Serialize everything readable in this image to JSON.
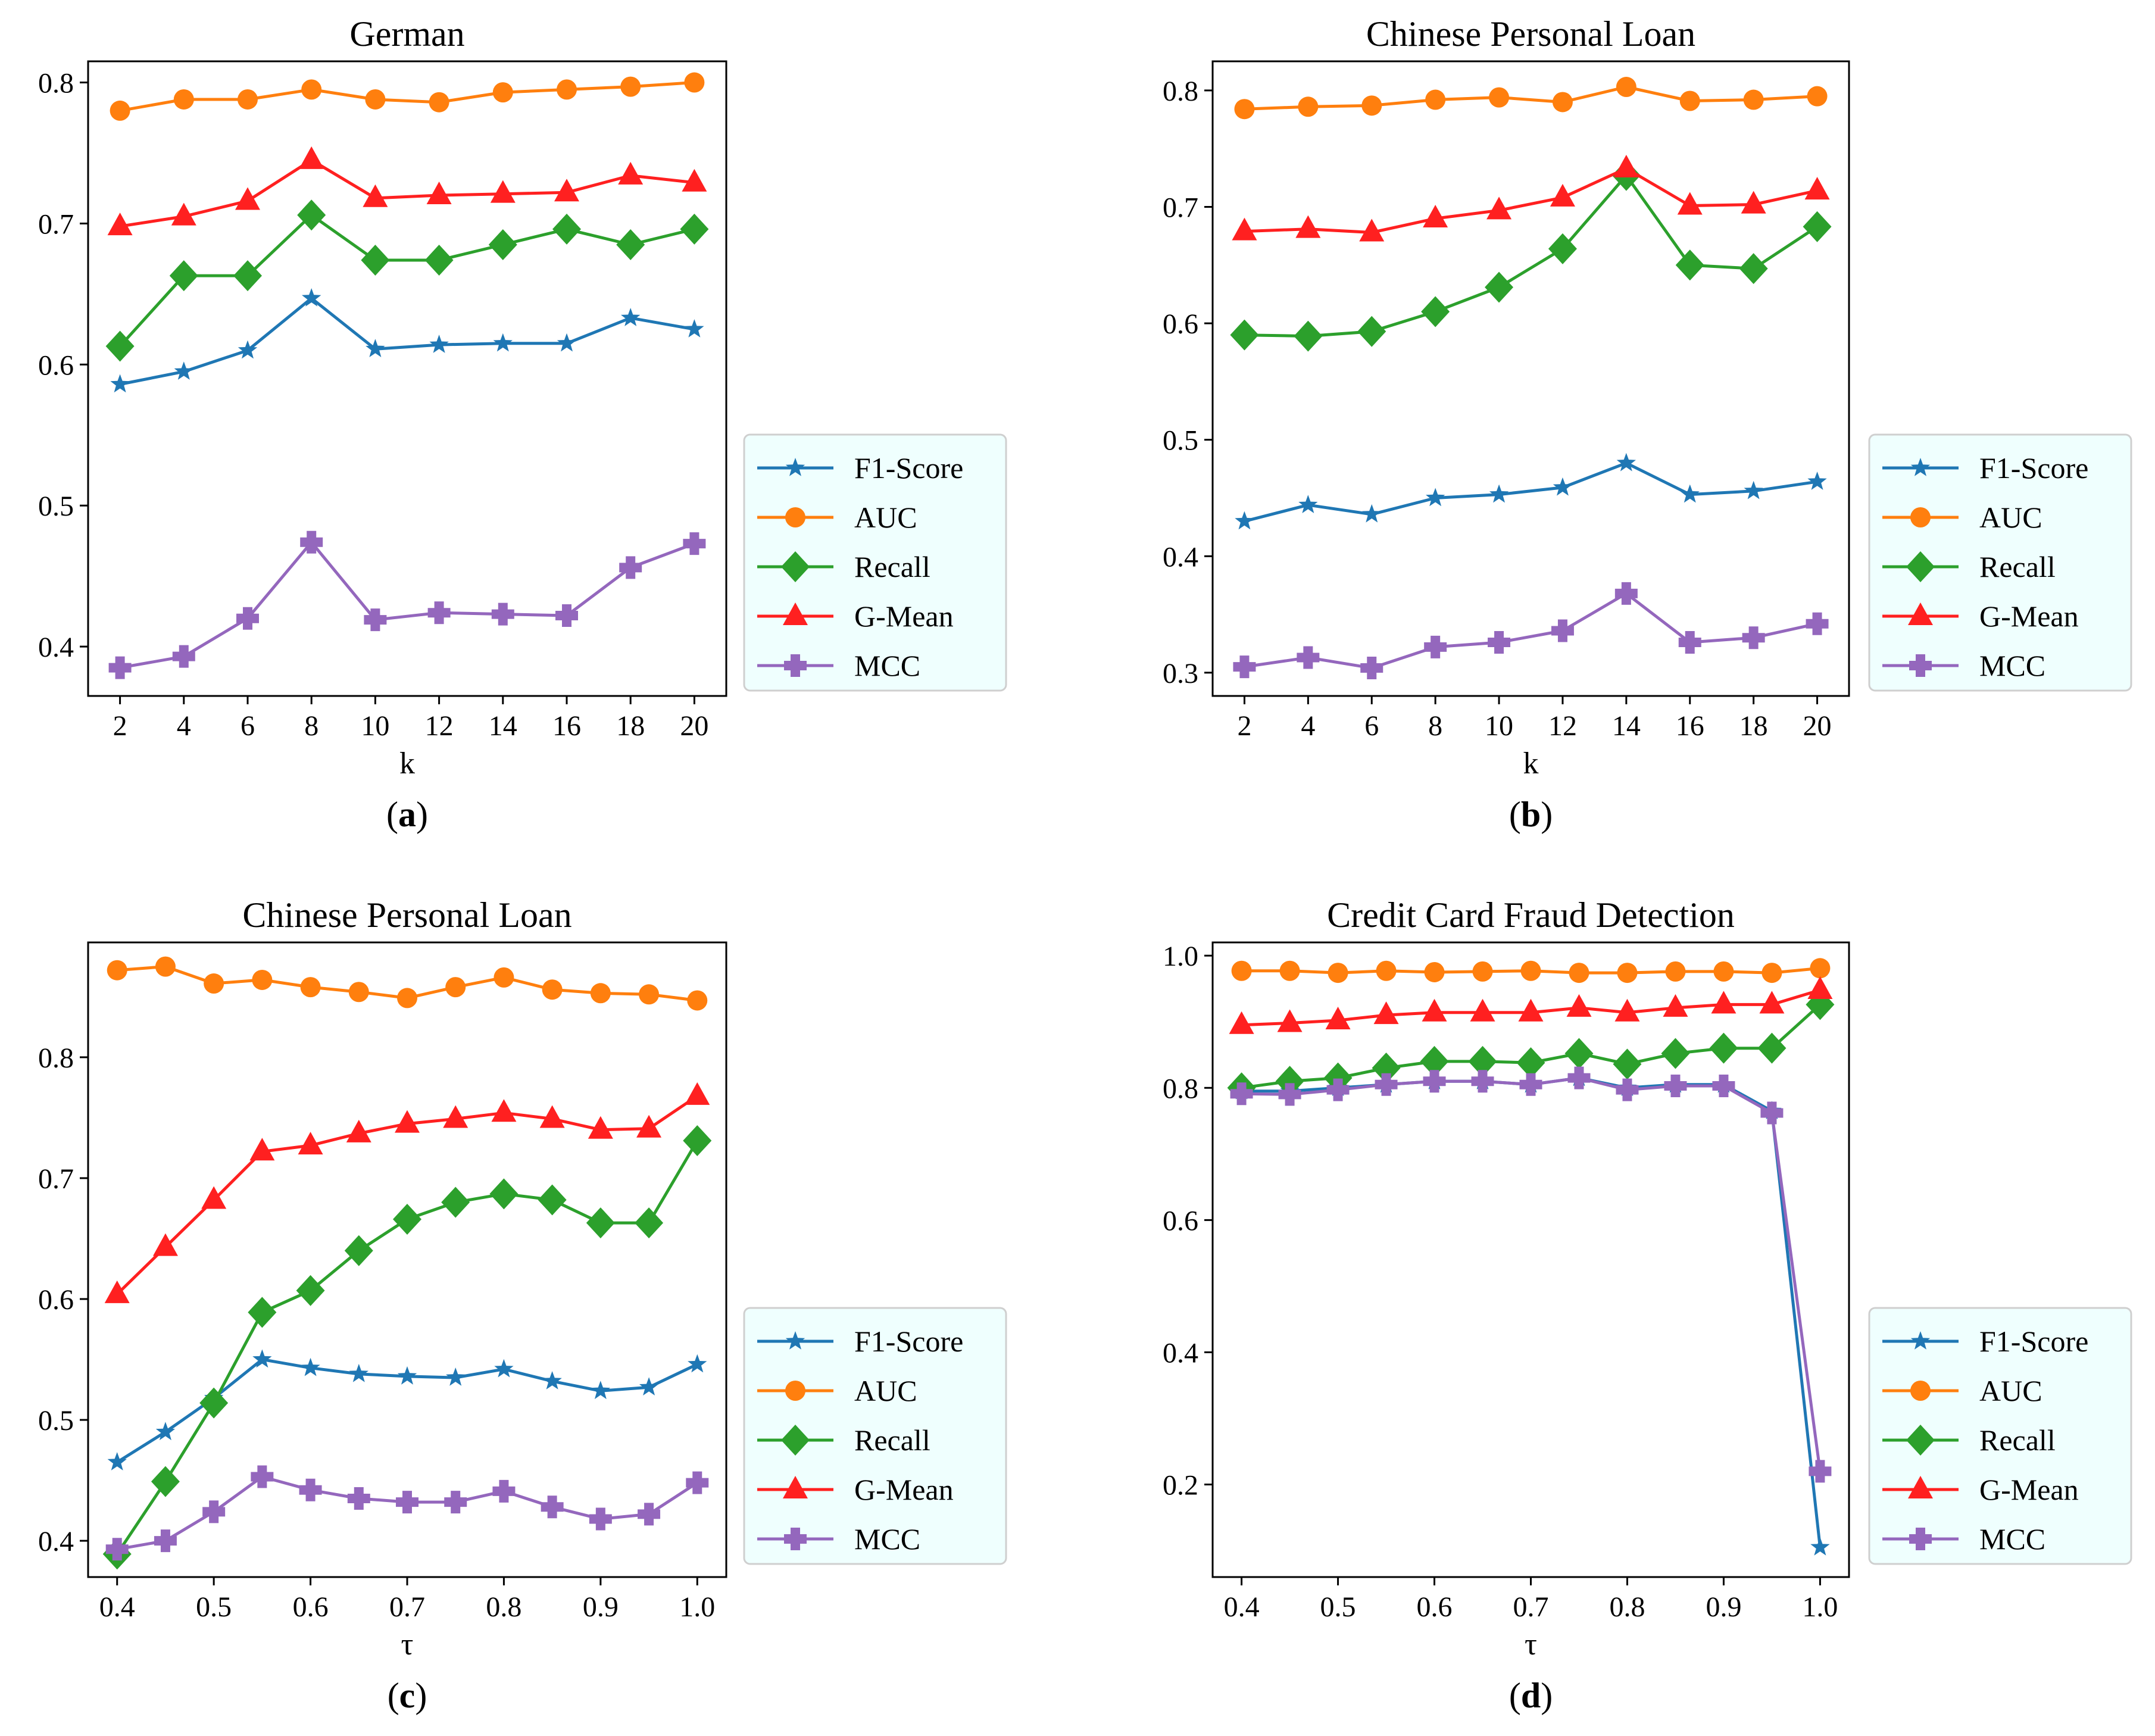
{
  "figure": {
    "panel_labels": [
      "a",
      "b",
      "c",
      "d"
    ]
  },
  "chart_data": [
    {
      "type": "line",
      "panel": "a",
      "title": "German",
      "xlabel": "k",
      "ylabel": "",
      "x": [
        2,
        4,
        6,
        8,
        10,
        12,
        14,
        16,
        18,
        20
      ],
      "xticks": [
        "2",
        "4",
        "6",
        "8",
        "10",
        "12",
        "14",
        "16",
        "18",
        "20"
      ],
      "xlim": [
        1,
        21
      ],
      "ylim": [
        0.365,
        0.815
      ],
      "yticks": [
        "0.4",
        "0.5",
        "0.6",
        "0.7",
        "0.8"
      ],
      "ytick_values": [
        0.4,
        0.5,
        0.6,
        0.7,
        0.8
      ],
      "legend": "outside-right-bottom",
      "series": [
        {
          "name": "F1-Score",
          "color": "#1f77b4",
          "marker": "star",
          "values": [
            0.586,
            0.595,
            0.61,
            0.647,
            0.611,
            0.614,
            0.615,
            0.615,
            0.633,
            0.625
          ]
        },
        {
          "name": "AUC",
          "color": "#ff7f0e",
          "marker": "circle",
          "values": [
            0.78,
            0.788,
            0.788,
            0.795,
            0.788,
            0.786,
            0.793,
            0.795,
            0.797,
            0.8
          ]
        },
        {
          "name": "Recall",
          "color": "#2ca02c",
          "marker": "diamond",
          "values": [
            0.613,
            0.663,
            0.663,
            0.706,
            0.674,
            0.674,
            0.685,
            0.696,
            0.685,
            0.696
          ]
        },
        {
          "name": "G-Mean",
          "color": "#ff2020",
          "marker": "triangle",
          "values": [
            0.698,
            0.705,
            0.716,
            0.745,
            0.718,
            0.72,
            0.721,
            0.722,
            0.734,
            0.729
          ]
        },
        {
          "name": "MCC",
          "color": "#9467bd",
          "marker": "plus",
          "values": [
            0.385,
            0.393,
            0.42,
            0.474,
            0.419,
            0.424,
            0.423,
            0.422,
            0.456,
            0.473
          ]
        }
      ]
    },
    {
      "type": "line",
      "panel": "b",
      "title": "Chinese Personal Loan",
      "xlabel": "k",
      "ylabel": "",
      "x": [
        2,
        4,
        6,
        8,
        10,
        12,
        14,
        16,
        18,
        20
      ],
      "xticks": [
        "2",
        "4",
        "6",
        "8",
        "10",
        "12",
        "14",
        "16",
        "18",
        "20"
      ],
      "xlim": [
        1,
        21
      ],
      "ylim": [
        0.28,
        0.825
      ],
      "yticks": [
        "0.3",
        "0.4",
        "0.5",
        "0.6",
        "0.7",
        "0.8"
      ],
      "ytick_values": [
        0.3,
        0.4,
        0.5,
        0.6,
        0.7,
        0.8
      ],
      "legend": "outside-right-bottom",
      "series": [
        {
          "name": "F1-Score",
          "color": "#1f77b4",
          "marker": "star",
          "values": [
            0.43,
            0.444,
            0.436,
            0.45,
            0.453,
            0.459,
            0.48,
            0.453,
            0.456,
            0.464
          ]
        },
        {
          "name": "AUC",
          "color": "#ff7f0e",
          "marker": "circle",
          "values": [
            0.784,
            0.786,
            0.787,
            0.792,
            0.794,
            0.79,
            0.803,
            0.791,
            0.792,
            0.795
          ]
        },
        {
          "name": "Recall",
          "color": "#2ca02c",
          "marker": "diamond",
          "values": [
            0.59,
            0.589,
            0.593,
            0.61,
            0.631,
            0.664,
            0.727,
            0.65,
            0.647,
            0.683
          ]
        },
        {
          "name": "G-Mean",
          "color": "#ff2020",
          "marker": "triangle",
          "values": [
            0.679,
            0.681,
            0.678,
            0.69,
            0.697,
            0.708,
            0.733,
            0.701,
            0.702,
            0.714
          ]
        },
        {
          "name": "MCC",
          "color": "#9467bd",
          "marker": "plus",
          "values": [
            0.305,
            0.313,
            0.304,
            0.322,
            0.326,
            0.336,
            0.368,
            0.326,
            0.33,
            0.342
          ]
        }
      ]
    },
    {
      "type": "line",
      "panel": "c",
      "title": "Chinese Personal Loan",
      "xlabel": "τ",
      "ylabel": "",
      "x": [
        0.4,
        0.45,
        0.5,
        0.55,
        0.6,
        0.65,
        0.7,
        0.75,
        0.8,
        0.85,
        0.9,
        0.95,
        1.0
      ],
      "xticks": [
        "0.4",
        "0.5",
        "0.6",
        "0.7",
        "0.8",
        "0.9",
        "1.0"
      ],
      "xtick_values": [
        0.4,
        0.5,
        0.6,
        0.7,
        0.8,
        0.9,
        1.0
      ],
      "xlim": [
        0.37,
        1.03
      ],
      "ylim": [
        0.37,
        0.895
      ],
      "yticks": [
        "0.4",
        "0.5",
        "0.6",
        "0.7",
        "0.8"
      ],
      "ytick_values": [
        0.4,
        0.5,
        0.6,
        0.7,
        0.8
      ],
      "legend": "outside-right-bottom",
      "series": [
        {
          "name": "F1-Score",
          "color": "#1f77b4",
          "marker": "star",
          "values": [
            0.465,
            0.49,
            0.518,
            0.55,
            0.543,
            0.538,
            0.536,
            0.535,
            0.542,
            0.532,
            0.524,
            0.527,
            0.546
          ]
        },
        {
          "name": "AUC",
          "color": "#ff7f0e",
          "marker": "circle",
          "values": [
            0.872,
            0.875,
            0.861,
            0.864,
            0.858,
            0.854,
            0.849,
            0.858,
            0.866,
            0.856,
            0.853,
            0.852,
            0.847
          ]
        },
        {
          "name": "Recall",
          "color": "#2ca02c",
          "marker": "diamond",
          "values": [
            0.389,
            0.449,
            0.514,
            0.589,
            0.607,
            0.64,
            0.666,
            0.68,
            0.687,
            0.682,
            0.663,
            0.663,
            0.731
          ]
        },
        {
          "name": "G-Mean",
          "color": "#ff2020",
          "marker": "triangle",
          "values": [
            0.604,
            0.643,
            0.682,
            0.722,
            0.727,
            0.737,
            0.745,
            0.749,
            0.754,
            0.749,
            0.74,
            0.741,
            0.768
          ]
        },
        {
          "name": "MCC",
          "color": "#9467bd",
          "marker": "plus",
          "values": [
            0.393,
            0.4,
            0.424,
            0.453,
            0.442,
            0.435,
            0.432,
            0.432,
            0.441,
            0.428,
            0.418,
            0.422,
            0.448
          ]
        }
      ]
    },
    {
      "type": "line",
      "panel": "d",
      "title": "Credit Card Fraud Detection",
      "xlabel": "τ",
      "ylabel": "",
      "x": [
        0.4,
        0.45,
        0.5,
        0.55,
        0.6,
        0.65,
        0.7,
        0.75,
        0.8,
        0.85,
        0.9,
        0.95,
        1.0
      ],
      "xticks": [
        "0.4",
        "0.5",
        "0.6",
        "0.7",
        "0.8",
        "0.9",
        "1.0"
      ],
      "xtick_values": [
        0.4,
        0.5,
        0.6,
        0.7,
        0.8,
        0.9,
        1.0
      ],
      "xlim": [
        0.37,
        1.03
      ],
      "ylim": [
        0.06,
        1.02
      ],
      "yticks": [
        "0.2",
        "0.4",
        "0.6",
        "0.8",
        "1.0"
      ],
      "ytick_values": [
        0.2,
        0.4,
        0.6,
        0.8,
        1.0
      ],
      "legend": "outside-right-bottom",
      "series": [
        {
          "name": "F1-Score",
          "color": "#1f77b4",
          "marker": "star",
          "values": [
            0.795,
            0.795,
            0.8,
            0.805,
            0.81,
            0.81,
            0.805,
            0.815,
            0.8,
            0.805,
            0.805,
            0.765,
            0.105
          ]
        },
        {
          "name": "AUC",
          "color": "#ff7f0e",
          "marker": "circle",
          "values": [
            0.977,
            0.977,
            0.974,
            0.977,
            0.975,
            0.976,
            0.977,
            0.974,
            0.974,
            0.976,
            0.976,
            0.974,
            0.981
          ]
        },
        {
          "name": "Recall",
          "color": "#2ca02c",
          "marker": "diamond",
          "values": [
            0.8,
            0.81,
            0.815,
            0.83,
            0.84,
            0.84,
            0.838,
            0.852,
            0.836,
            0.852,
            0.86,
            0.86,
            0.926
          ]
        },
        {
          "name": "G-Mean",
          "color": "#ff2020",
          "marker": "triangle",
          "values": [
            0.895,
            0.898,
            0.902,
            0.91,
            0.914,
            0.914,
            0.914,
            0.921,
            0.914,
            0.921,
            0.926,
            0.926,
            0.948
          ]
        },
        {
          "name": "MCC",
          "color": "#9467bd",
          "marker": "plus",
          "values": [
            0.791,
            0.79,
            0.797,
            0.805,
            0.81,
            0.81,
            0.805,
            0.815,
            0.797,
            0.803,
            0.803,
            0.762,
            0.22
          ]
        }
      ]
    }
  ]
}
